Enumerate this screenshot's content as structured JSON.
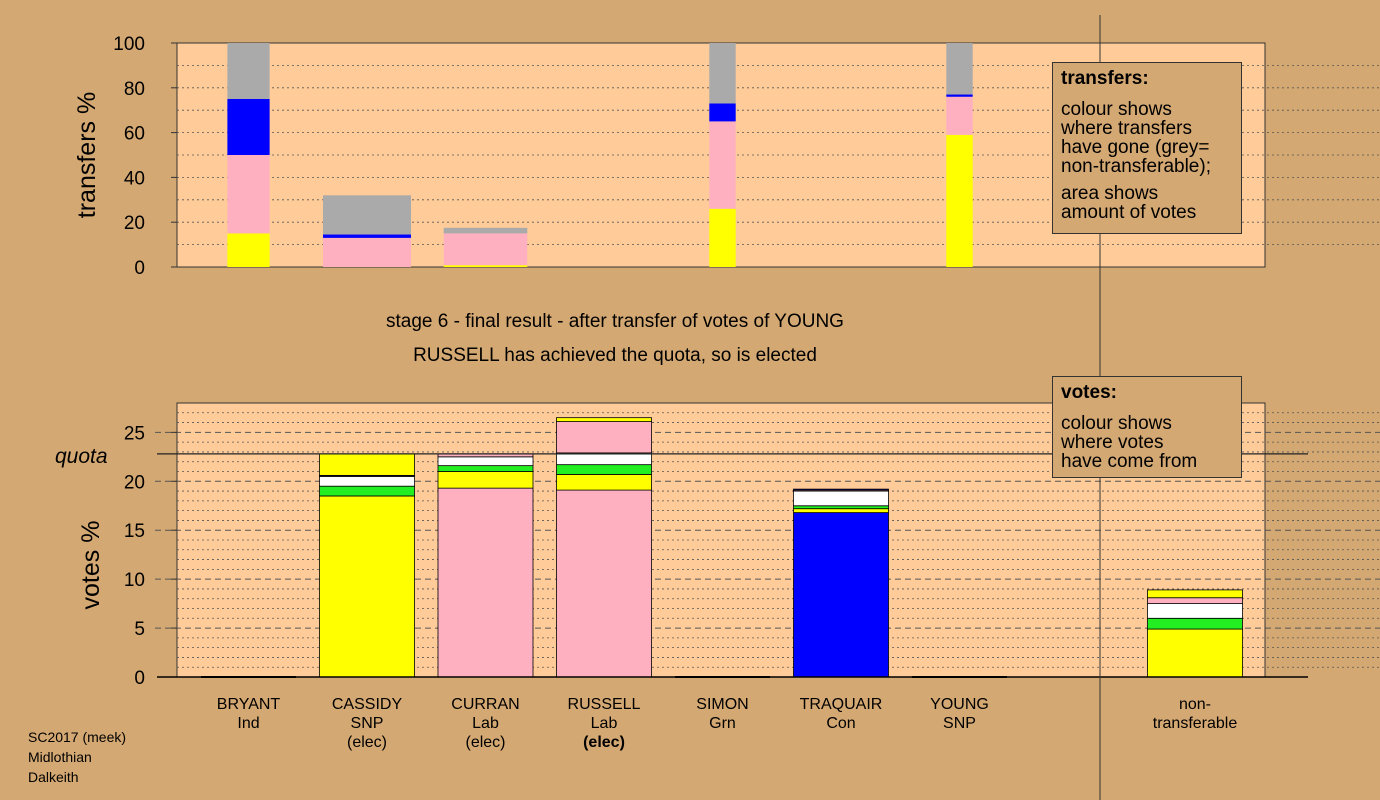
{
  "colors": {
    "background": "#d4a872",
    "plot_background": "#ffcc99",
    "SNP": "#ffff00",
    "Lab": "#ffb0c0",
    "Con": "#0000ff",
    "Grn": "#22ee22",
    "Ind": "#ffffff",
    "non_transferable": "#aaaaaa"
  },
  "caption": {
    "line1": "stage 6 - final result - after transfer of votes of YOUNG",
    "line2": "RUSSELL has achieved the quota, so is elected"
  },
  "legend_transfers": {
    "title": "transfers:",
    "para1": [
      "colour shows",
      "where transfers",
      "have gone (grey=",
      "non-transferable);"
    ],
    "para2": [
      "area shows",
      "amount of votes"
    ]
  },
  "legend_votes": {
    "title": "votes:",
    "para1": [
      "colour shows",
      "where votes",
      "have come from"
    ]
  },
  "footer": [
    "SC2017 (meek)",
    "Midlothian",
    "Dalkeith"
  ],
  "chart_data": [
    {
      "type": "bar",
      "title": "",
      "ylabel": "transfers %",
      "ylim": [
        0,
        100
      ],
      "yticks": [
        0,
        20,
        40,
        60,
        80,
        100
      ],
      "description_note": "stacked transfer bars; bar width proportional to transferred votes",
      "bars": [
        {
          "candidate": "BRYANT",
          "width_units": 0.48,
          "segments": [
            {
              "color": "SNP",
              "value": 15
            },
            {
              "color": "Lab",
              "value": 35
            },
            {
              "color": "Con",
              "value": 25
            },
            {
              "color": "non_transferable",
              "value": 25
            }
          ]
        },
        {
          "candidate": "CASSIDY",
          "width_units": 1.0,
          "segments": [
            {
              "color": "Lab",
              "value": 13
            },
            {
              "color": "Con",
              "value": 1.5
            },
            {
              "color": "non_transferable",
              "value": 17.5
            }
          ]
        },
        {
          "candidate": "CURRAN",
          "width_units": 0.95,
          "segments": [
            {
              "color": "SNP",
              "value": 0.8
            },
            {
              "color": "Lab",
              "value": 14.2
            },
            {
              "color": "non_transferable",
              "value": 2.5
            }
          ]
        },
        {
          "candidate": "SIMON",
          "width_units": 0.3,
          "segments": [
            {
              "color": "SNP",
              "value": 26
            },
            {
              "color": "Lab",
              "value": 39
            },
            {
              "color": "Con",
              "value": 8
            },
            {
              "color": "non_transferable",
              "value": 27
            }
          ]
        },
        {
          "candidate": "YOUNG",
          "width_units": 0.3,
          "segments": [
            {
              "color": "SNP",
              "value": 59
            },
            {
              "color": "Lab",
              "value": 17
            },
            {
              "color": "Con",
              "value": 1
            },
            {
              "color": "non_transferable",
              "value": 23
            }
          ]
        }
      ]
    },
    {
      "type": "bar",
      "title": "",
      "ylabel": "votes %",
      "ylim": [
        0,
        28
      ],
      "yticks": [
        0,
        5,
        10,
        15,
        20,
        25
      ],
      "quota": 22.8,
      "quota_label": "quota",
      "categories": [
        {
          "name": "BRYANT",
          "party": "Ind",
          "note": ""
        },
        {
          "name": "CASSIDY",
          "party": "SNP",
          "note": "(elec)"
        },
        {
          "name": "CURRAN",
          "party": "Lab",
          "note": "(elec)"
        },
        {
          "name": "RUSSELL",
          "party": "Lab",
          "note": "(elec)",
          "note_bold": true
        },
        {
          "name": "SIMON",
          "party": "Grn",
          "note": ""
        },
        {
          "name": "TRAQUAIR",
          "party": "Con",
          "note": ""
        },
        {
          "name": "YOUNG",
          "party": "SNP",
          "note": ""
        },
        {
          "name": "non-",
          "party": "transferable",
          "note": ""
        }
      ],
      "bars": [
        [],
        [
          {
            "color": "SNP",
            "value": 18.5
          },
          {
            "color": "Grn",
            "value": 1
          },
          {
            "color": "Ind",
            "value": 1
          },
          {
            "color": "Con",
            "value": 0.1
          },
          {
            "color": "SNP",
            "value": 2.2
          }
        ],
        [
          {
            "color": "Lab",
            "value": 19.3
          },
          {
            "color": "SNP",
            "value": 1.7
          },
          {
            "color": "Grn",
            "value": 0.6
          },
          {
            "color": "Ind",
            "value": 0.9
          },
          {
            "color": "Lab",
            "value": 0.3
          }
        ],
        [
          {
            "color": "Lab",
            "value": 19.1
          },
          {
            "color": "SNP",
            "value": 1.6
          },
          {
            "color": "Grn",
            "value": 1
          },
          {
            "color": "Ind",
            "value": 1.2
          },
          {
            "color": "Lab",
            "value": 3.2
          },
          {
            "color": "SNP",
            "value": 0.4
          }
        ],
        [],
        [
          {
            "color": "Con",
            "value": 16.8
          },
          {
            "color": "SNP",
            "value": 0.4
          },
          {
            "color": "Grn",
            "value": 0.3
          },
          {
            "color": "Ind",
            "value": 1.5
          },
          {
            "color": "Lab",
            "value": 0.1
          },
          {
            "color": "Con",
            "value": 0.1
          }
        ],
        [],
        [
          {
            "color": "SNP",
            "value": 4.9
          },
          {
            "color": "Grn",
            "value": 1.1
          },
          {
            "color": "Ind",
            "value": 1.5
          },
          {
            "color": "Lab",
            "value": 0.6
          },
          {
            "color": "SNP",
            "value": 0.8
          }
        ]
      ]
    }
  ]
}
